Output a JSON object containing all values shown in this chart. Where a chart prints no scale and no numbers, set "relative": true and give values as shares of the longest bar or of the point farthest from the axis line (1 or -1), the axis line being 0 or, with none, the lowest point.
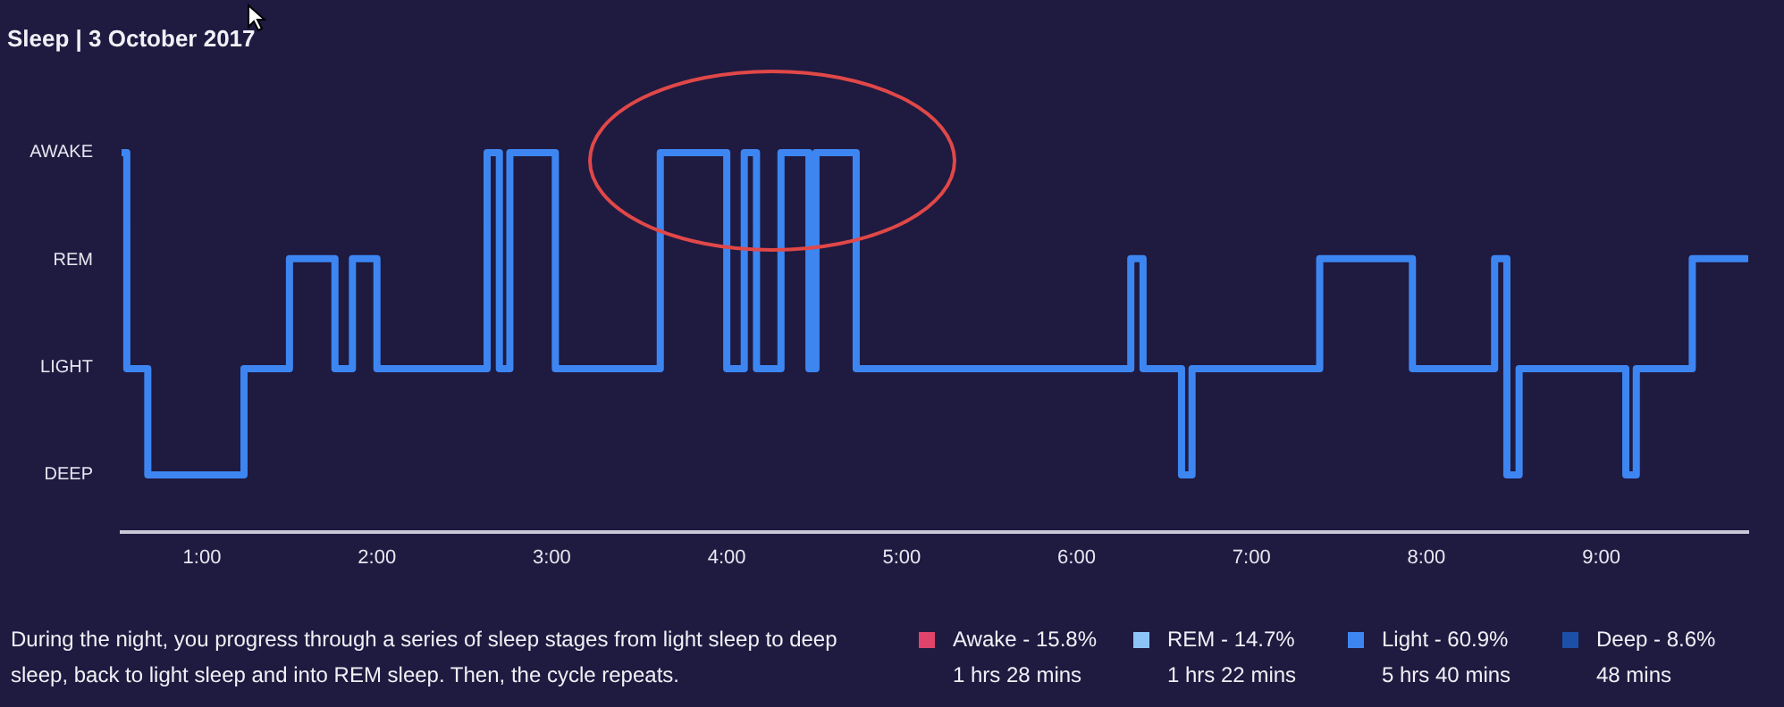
{
  "chart_data": {
    "type": "step",
    "title": "Sleep | 3 October 2017",
    "x": [
      0.54,
      0.57,
      0.69,
      1.24,
      1.5,
      1.76,
      1.86,
      2.0,
      2.63,
      2.7,
      2.76,
      3.02,
      3.62,
      4.0,
      4.1,
      4.17,
      4.31,
      4.47,
      4.51,
      4.74,
      6.31,
      6.38,
      6.6,
      6.66,
      7.39,
      7.92,
      8.39,
      8.46,
      8.53,
      9.14,
      9.2,
      9.52,
      9.83
    ],
    "relative": true,
    "series": [
      {
        "color": "#3d86f2",
        "values": [
          1,
          0.43,
          0.15,
          0.43,
          0.72,
          0.43,
          0.72,
          0.43,
          1,
          0.43,
          1,
          0.43,
          1,
          0.43,
          1,
          0.43,
          1,
          0.43,
          1,
          0.43,
          0.72,
          0.43,
          0.15,
          0.43,
          0.72,
          0.43,
          0.72,
          0.15,
          0.43,
          0.15,
          0.43,
          0.72,
          0.72
        ]
      }
    ],
    "xlim": [
      0.54,
      9.84
    ],
    "xticks": [
      {
        "value": 1,
        "label": "1:00"
      },
      {
        "value": 2,
        "label": "2:00"
      },
      {
        "value": 3,
        "label": "3:00"
      },
      {
        "value": 4,
        "label": "4:00"
      },
      {
        "value": 5,
        "label": "5:00"
      },
      {
        "value": 6,
        "label": "6:00"
      },
      {
        "value": 7,
        "label": "7:00"
      },
      {
        "value": 8,
        "label": "8:00"
      },
      {
        "value": 9,
        "label": "9:00"
      }
    ],
    "grid": false,
    "legend": false,
    "marker": "none",
    "line_style": "solid",
    "annotations": [
      "AWAKE",
      "REM",
      "LIGHT",
      "DEEP",
      "During the night, you progress through a series of sleep stages from light sleep to deep sleep, back to light sleep and into REM sleep. Then, the cycle repeats.",
      "Awake - 15.8%",
      "1 hrs 28 mins",
      "REM - 14.7%",
      "1 hrs 22 mins",
      "Light - 60.9%",
      "5 hrs 40 mins",
      "Deep - 8.6%",
      "48 mins"
    ]
  }
}
